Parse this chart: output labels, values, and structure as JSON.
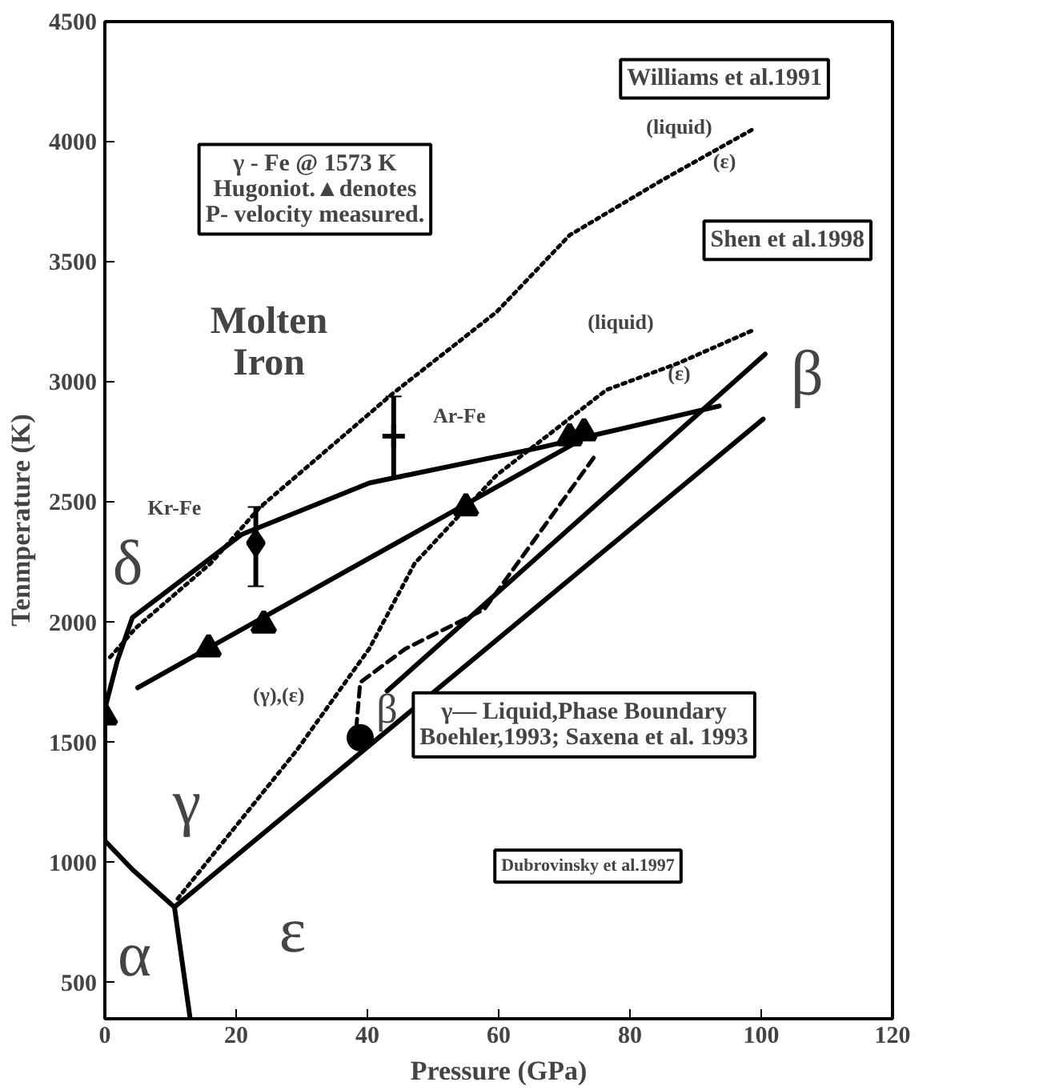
{
  "chart_data": {
    "type": "line",
    "xlabel": "Pressure (GPa)",
    "ylabel": "Tenmperature (K)",
    "xlim": [
      0,
      120
    ],
    "ylim": [
      350,
      4500
    ],
    "xticks": [
      0,
      20,
      40,
      60,
      80,
      100,
      120
    ],
    "yticks": [
      500,
      1000,
      1500,
      2000,
      2500,
      3000,
      3500,
      4000,
      4500
    ],
    "grid": false,
    "series": [
      {
        "color": "#000000",
        "line_style": "solid",
        "x": [
          10.6,
          4.2,
          0,
          0,
          0,
          1.9,
          4.2,
          20.8,
          40.3,
          66,
          93.6
        ],
        "values": [
          815,
          971,
          1091,
          1254,
          1640,
          1840,
          2020,
          2365,
          2580,
          2725,
          2900
        ]
      },
      {
        "color": "#000000",
        "line_style": "solid",
        "x": [
          10.6,
          100.3
        ],
        "values": [
          815,
          2846
        ]
      },
      {
        "color": "#000000",
        "line_style": "solid",
        "x": [
          43,
          100.6
        ],
        "values": [
          1714,
          3116
        ]
      },
      {
        "color": "#000000",
        "line_style": "solid",
        "x": [
          10.6,
          13
        ],
        "values": [
          815,
          350
        ]
      },
      {
        "color": "#000000",
        "line_style": "dashed",
        "x": [
          38.3,
          38.9,
          45.8,
          57.8,
          75
        ],
        "values": [
          1558,
          1750,
          1890,
          2054,
          2705
        ]
      },
      {
        "color": "#000000",
        "line_style": "dotted",
        "x": [
          11.1,
          29.2,
          40.3,
          47.2,
          59.7,
          76.4,
          87.5,
          98.6
        ],
        "values": [
          850,
          1466,
          1891,
          2245,
          2613,
          2967,
          3080,
          3214
        ]
      },
      {
        "color": "#000000",
        "line_style": "dotted",
        "x": [
          0.8,
          4.7,
          16.1,
          23.6,
          43.9,
          59.7,
          70.8,
          84.7,
          98.6
        ],
        "values": [
          1855,
          1976,
          2245,
          2478,
          2953,
          3292,
          3611,
          3837,
          4050
        ]
      },
      {
        "color": "#000000",
        "line_style": "solid",
        "x": [
          5,
          73.6
        ],
        "values": [
          1728,
          2776
        ]
      },
      {
        "type": "scatter",
        "marker": "triangle",
        "color": "#000000",
        "x": [
          0,
          15.8,
          24.2,
          55,
          70.8,
          73
        ],
        "values": [
          1608,
          1891,
          1990,
          2478,
          2769,
          2790
        ]
      },
      {
        "type": "scatter",
        "marker": "diamond",
        "color": "#000000",
        "x": [
          23
        ],
        "values": [
          2330
        ],
        "errors": [
          [
            2150,
            2480
          ]
        ]
      },
      {
        "type": "scatter",
        "marker": "cross",
        "color": "#000000",
        "x": [
          44
        ],
        "values": [
          2775
        ],
        "errors": [
          [
            2600,
            2940
          ]
        ]
      },
      {
        "type": "scatter",
        "marker": "circle",
        "color": "#000000",
        "x": [
          38.9
        ],
        "values": [
          1520
        ]
      }
    ],
    "annotations": [
      "Williams et al.1991",
      "(liquid)",
      "(ε)",
      "γ - Fe @ 1573 K\nHugoniot.▲denotes\nP- velocity measured.",
      "Shen et al.1998",
      "(liquid)",
      "(ε)",
      "β",
      "Molten\nIron",
      "Ar-Fe",
      "Kr-Fe",
      "δ",
      "γ",
      "α",
      "ε",
      "β",
      "(γ),(ε)",
      "γ— Liquid,Phase Boundary\nBoehler,1993; Saxena et al. 1993",
      "Dubrovinsky et al.1997"
    ]
  }
}
